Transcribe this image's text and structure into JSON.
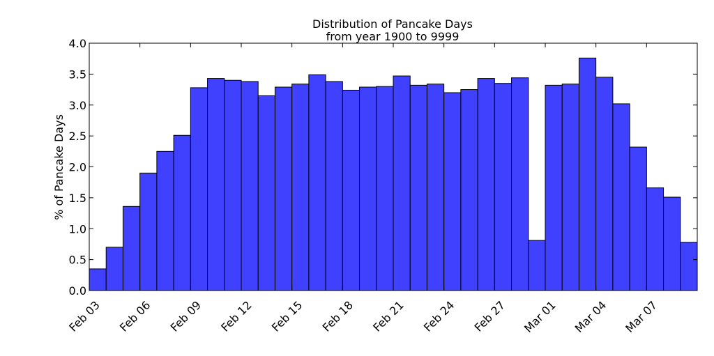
{
  "chart_data": {
    "type": "bar",
    "title": "Distribution of Pancake Days",
    "subtitle": "from year 1900 to 9999",
    "ylabel": "% of Pancake Days",
    "xlabel": "",
    "ylim": [
      0,
      4.0
    ],
    "yticks": [
      "0.0",
      "0.5",
      "1.0",
      "1.5",
      "2.0",
      "2.5",
      "3.0",
      "3.5",
      "4.0"
    ],
    "bar_color": "#4040ff",
    "categories": [
      "Feb 03",
      "Feb 04",
      "Feb 05",
      "Feb 06",
      "Feb 07",
      "Feb 08",
      "Feb 09",
      "Feb 10",
      "Feb 11",
      "Feb 12",
      "Feb 13",
      "Feb 14",
      "Feb 15",
      "Feb 16",
      "Feb 17",
      "Feb 18",
      "Feb 19",
      "Feb 20",
      "Feb 21",
      "Feb 22",
      "Feb 23",
      "Feb 24",
      "Feb 25",
      "Feb 26",
      "Feb 27",
      "Feb 28",
      "Feb 29",
      "Mar 01",
      "Mar 02",
      "Mar 03",
      "Mar 04",
      "Mar 05",
      "Mar 06",
      "Mar 07",
      "Mar 08",
      "Mar 09"
    ],
    "values": [
      0.35,
      0.7,
      1.36,
      1.9,
      2.25,
      2.51,
      3.28,
      3.43,
      3.4,
      3.38,
      3.15,
      3.29,
      3.34,
      3.49,
      3.38,
      3.24,
      3.29,
      3.3,
      3.47,
      3.32,
      3.34,
      3.2,
      3.25,
      3.43,
      3.35,
      3.44,
      0.81,
      3.32,
      3.34,
      3.76,
      3.45,
      3.02,
      2.32,
      1.66,
      1.51,
      0.78
    ],
    "xtick_labels": [
      "Feb 03",
      "Feb 06",
      "Feb 09",
      "Feb 12",
      "Feb 15",
      "Feb 18",
      "Feb 21",
      "Feb 24",
      "Feb 27",
      "Mar 01",
      "Mar 04",
      "Mar 07"
    ],
    "xtick_positions": [
      0,
      3,
      6,
      9,
      12,
      15,
      18,
      21,
      24,
      27,
      30,
      33
    ]
  }
}
